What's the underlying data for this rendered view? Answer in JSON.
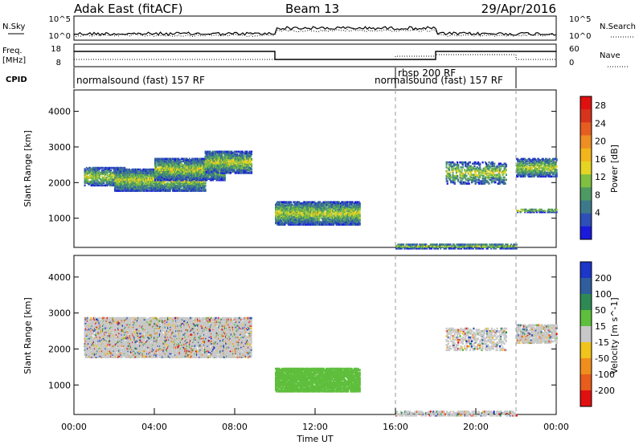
{
  "header": {
    "station": "Adak East (fitACF)",
    "beam": "Beam 13",
    "date": "29/Apr/2016"
  },
  "status_panels": {
    "nsky_label": "N.Sky",
    "nsearch_label": "N.Search",
    "freq_label_1": "Freq.",
    "freq_label_2": "[MHz]",
    "nave_label": "Nave",
    "cpid_label": "CPID",
    "nsky_ticks": [
      "10^5",
      "10^0"
    ],
    "nsearch_ticks": [
      "10^5",
      "10^0"
    ],
    "freq_ticks": [
      "18",
      "8"
    ],
    "nave_ticks": [
      "60",
      "0"
    ]
  },
  "cpid_segments": [
    {
      "label": "normalsound (fast) 157 RF",
      "start": 0.0
    },
    {
      "label": "rbsp 200 RF",
      "start": 16.0
    },
    {
      "label": "normalsound (fast) 157 RF",
      "start": 16.0
    }
  ],
  "chart_data": [
    {
      "type": "heatmap",
      "parameter": "Power",
      "ylabel": "Slant Range [km]",
      "xlabel": "",
      "ylim": [
        180,
        4600
      ],
      "yticks": [
        "1000",
        "2000",
        "3000",
        "4000"
      ],
      "colorbar_title": "Power [dB]",
      "colorbar_ticks": [
        "4",
        "8",
        "12",
        "16",
        "20",
        "24",
        "28"
      ],
      "colors": [
        "#1a1adc",
        "#2f4fb8",
        "#3c7a8a",
        "#4e9a63",
        "#7fc040",
        "#e6d423",
        "#f3b51c",
        "#ef8e22",
        "#e65d20",
        "#d7331d",
        "#e01010"
      ],
      "scatter_regions": [
        {
          "t": [
            0.5,
            2.5
          ],
          "r": [
            1950,
            2450
          ],
          "density": 0.55
        },
        {
          "t": [
            2.0,
            6.5
          ],
          "r": [
            1800,
            2400
          ],
          "density": 0.8
        },
        {
          "t": [
            4.0,
            7.5
          ],
          "r": [
            2100,
            2700
          ],
          "density": 0.75
        },
        {
          "t": [
            6.5,
            8.8
          ],
          "r": [
            2300,
            2900
          ],
          "density": 0.7
        },
        {
          "t": [
            10.0,
            14.2
          ],
          "r": [
            850,
            1500
          ],
          "density": 0.75
        },
        {
          "t": [
            16.0,
            22.0
          ],
          "r": [
            180,
            300
          ],
          "density": 0.6
        },
        {
          "t": [
            18.5,
            21.5
          ],
          "r": [
            2000,
            2600
          ],
          "density": 0.35
        },
        {
          "t": [
            22.0,
            24.0
          ],
          "r": [
            2200,
            2700
          ],
          "density": 0.6
        },
        {
          "t": [
            22.0,
            24.0
          ],
          "r": [
            1200,
            1300
          ],
          "density": 0.4
        }
      ]
    },
    {
      "type": "heatmap",
      "parameter": "Velocity",
      "ylabel": "Slant Range [km]",
      "xlabel": "Time UT",
      "xticks": [
        "00:00",
        "04:00",
        "08:00",
        "12:00",
        "16:00",
        "20:00",
        "00:00"
      ],
      "ylim": [
        180,
        4600
      ],
      "yticks": [
        "1000",
        "2000",
        "3000",
        "4000"
      ],
      "colorbar_title": "Velocity [m s^-1]",
      "colorbar_ticks": [
        "200",
        "100",
        "50",
        "15",
        "-15",
        "-50",
        "-100",
        "-200"
      ],
      "colors": [
        "#1b36c8",
        "#2e5e9e",
        "#2e8a55",
        "#5fbe3c",
        "#c8c8c8",
        "#f0c41a",
        "#ef8e1c",
        "#e85c1c",
        "#e01010"
      ],
      "scatter_regions": [
        {
          "t": [
            0.5,
            8.8
          ],
          "r": [
            1800,
            2900
          ],
          "density": 0.75
        },
        {
          "t": [
            10.0,
            14.2
          ],
          "r": [
            850,
            1500
          ],
          "density": 0.8
        },
        {
          "t": [
            16.0,
            22.0
          ],
          "r": [
            180,
            300
          ],
          "density": 0.5
        },
        {
          "t": [
            18.5,
            21.5
          ],
          "r": [
            2000,
            2600
          ],
          "density": 0.35
        },
        {
          "t": [
            22.0,
            24.0
          ],
          "r": [
            2200,
            2700
          ],
          "density": 0.6
        }
      ]
    }
  ]
}
